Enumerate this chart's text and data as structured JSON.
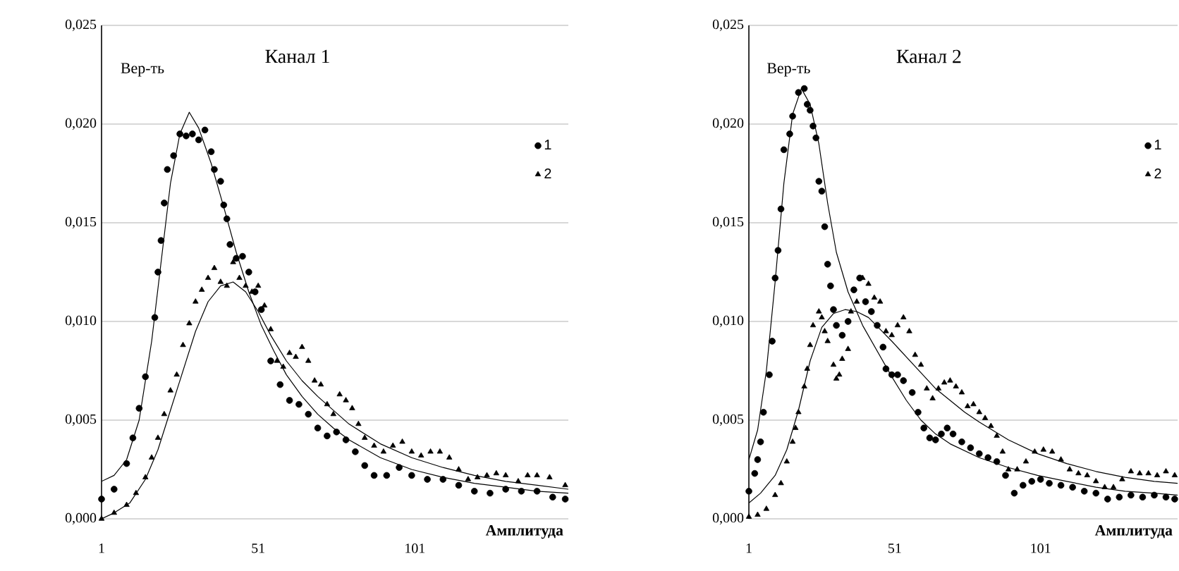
{
  "chart_data": [
    {
      "type": "scatter",
      "title": "Канал 1",
      "xlabel": "Амплитуда",
      "ylabel": "Вер-ть",
      "xlim": [
        1,
        150
      ],
      "xticks": [
        1,
        51,
        101
      ],
      "ylim": [
        0,
        0.025
      ],
      "yticks": [
        {
          "value": 0,
          "label": "0,000"
        },
        {
          "value": 0.005,
          "label": "0,005"
        },
        {
          "value": 0.01,
          "label": "0,010"
        },
        {
          "value": 0.015,
          "label": "0,015"
        },
        {
          "value": 0.02,
          "label": "0,020"
        },
        {
          "value": 0.025,
          "label": "0,025"
        }
      ],
      "grid": "y",
      "legend": "right",
      "series": [
        {
          "name": "1",
          "marker": "circle",
          "color": "#000000",
          "x": [
            1,
            5,
            9,
            11,
            13,
            15,
            18,
            19,
            20,
            21,
            22,
            24,
            26,
            28,
            30,
            32,
            34,
            36,
            37,
            39,
            40,
            41,
            42,
            44,
            46,
            48,
            50,
            52,
            55,
            58,
            61,
            64,
            67,
            70,
            73,
            76,
            79,
            82,
            85,
            88,
            92,
            96,
            100,
            105,
            110,
            115,
            120,
            125,
            130,
            135,
            140,
            145,
            149
          ],
          "values": [
            0.001,
            0.0015,
            0.0028,
            0.0041,
            0.0056,
            0.0072,
            0.0102,
            0.0125,
            0.0141,
            0.016,
            0.0177,
            0.0184,
            0.0195,
            0.0194,
            0.0195,
            0.0192,
            0.0197,
            0.0186,
            0.0177,
            0.0171,
            0.0159,
            0.0152,
            0.0139,
            0.0132,
            0.0133,
            0.0125,
            0.0115,
            0.0106,
            0.008,
            0.0068,
            0.006,
            0.0058,
            0.0053,
            0.0046,
            0.0042,
            0.0044,
            0.004,
            0.0034,
            0.0027,
            0.0022,
            0.0022,
            0.0026,
            0.0022,
            0.002,
            0.002,
            0.0017,
            0.0014,
            0.0013,
            0.0015,
            0.0014,
            0.0014,
            0.0011,
            0.001
          ]
        },
        {
          "name": "2",
          "marker": "triangle",
          "color": "#000000",
          "x": [
            1,
            5,
            9,
            12,
            15,
            17,
            19,
            21,
            23,
            25,
            27,
            29,
            31,
            33,
            35,
            37,
            39,
            41,
            43,
            45,
            47,
            49,
            51,
            53,
            55,
            57,
            59,
            61,
            63,
            65,
            67,
            69,
            71,
            73,
            75,
            77,
            79,
            81,
            83,
            85,
            88,
            91,
            94,
            97,
            100,
            103,
            106,
            109,
            112,
            115,
            118,
            121,
            124,
            127,
            130,
            134,
            137,
            140,
            144,
            149
          ],
          "values": [
            0.0,
            0.0003,
            0.0007,
            0.0013,
            0.0021,
            0.0031,
            0.0041,
            0.0053,
            0.0065,
            0.0073,
            0.0088,
            0.0099,
            0.011,
            0.0116,
            0.0122,
            0.0127,
            0.012,
            0.0118,
            0.013,
            0.0122,
            0.0118,
            0.0115,
            0.0118,
            0.0108,
            0.0096,
            0.008,
            0.0077,
            0.0084,
            0.0082,
            0.0087,
            0.008,
            0.007,
            0.0068,
            0.0058,
            0.0053,
            0.0063,
            0.006,
            0.0056,
            0.0048,
            0.0041,
            0.0037,
            0.0034,
            0.0037,
            0.0039,
            0.0034,
            0.0032,
            0.0034,
            0.0034,
            0.0031,
            0.0025,
            0.002,
            0.0021,
            0.0022,
            0.0023,
            0.0022,
            0.0019,
            0.0022,
            0.0022,
            0.0021,
            0.0017
          ]
        },
        {
          "type": "line",
          "marker": "none",
          "color": "#000000",
          "x": [
            1,
            5,
            9,
            13,
            17,
            20,
            23,
            26,
            29,
            32,
            36,
            40,
            44,
            48,
            52,
            56,
            60,
            65,
            70,
            75,
            80,
            90,
            100,
            110,
            120,
            130,
            140,
            150
          ],
          "values": [
            0.0019,
            0.0022,
            0.003,
            0.005,
            0.009,
            0.013,
            0.017,
            0.0195,
            0.0206,
            0.0198,
            0.018,
            0.0158,
            0.0135,
            0.0115,
            0.0098,
            0.0085,
            0.0073,
            0.0062,
            0.0053,
            0.0046,
            0.004,
            0.0031,
            0.0025,
            0.0021,
            0.0018,
            0.0016,
            0.0014,
            0.0013
          ]
        },
        {
          "type": "line",
          "marker": "none",
          "color": "#000000",
          "x": [
            1,
            5,
            10,
            15,
            19,
            23,
            27,
            31,
            35,
            39,
            43,
            47,
            51,
            55,
            60,
            65,
            70,
            75,
            80,
            90,
            100,
            110,
            120,
            130,
            140,
            150
          ],
          "values": [
            0.0,
            0.0003,
            0.0008,
            0.002,
            0.0035,
            0.0055,
            0.0075,
            0.0095,
            0.011,
            0.0118,
            0.012,
            0.0115,
            0.0105,
            0.0093,
            0.008,
            0.007,
            0.0062,
            0.0055,
            0.0048,
            0.0038,
            0.0031,
            0.0026,
            0.0022,
            0.0019,
            0.0017,
            0.0015
          ]
        }
      ]
    },
    {
      "type": "scatter",
      "title": "Канал 2",
      "xlabel": "Амплитуда",
      "ylabel": "Вер-ть",
      "xlim": [
        1,
        148
      ],
      "xticks": [
        1,
        51,
        101
      ],
      "ylim": [
        0,
        0.025
      ],
      "yticks": [
        {
          "value": 0,
          "label": "0,000"
        },
        {
          "value": 0.005,
          "label": "0,005"
        },
        {
          "value": 0.01,
          "label": "0,010"
        },
        {
          "value": 0.015,
          "label": "0,015"
        },
        {
          "value": 0.02,
          "label": "0,020"
        },
        {
          "value": 0.025,
          "label": "0,025"
        }
      ],
      "grid": "y",
      "legend": "right",
      "series": [
        {
          "name": "1",
          "marker": "circle",
          "color": "#000000",
          "x": [
            1,
            3,
            4,
            5,
            6,
            8,
            9,
            10,
            11,
            12,
            13,
            15,
            16,
            18,
            20,
            21,
            22,
            23,
            24,
            25,
            26,
            27,
            28,
            29,
            30,
            31,
            33,
            35,
            37,
            39,
            41,
            43,
            45,
            47,
            48,
            50,
            52,
            54,
            57,
            59,
            61,
            63,
            65,
            67,
            69,
            71,
            74,
            77,
            80,
            83,
            86,
            89,
            92,
            95,
            98,
            101,
            104,
            108,
            112,
            116,
            120,
            124,
            128,
            132,
            136,
            140,
            144,
            147
          ],
          "values": [
            0.0014,
            0.0023,
            0.003,
            0.0039,
            0.0054,
            0.0073,
            0.009,
            0.0122,
            0.0136,
            0.0157,
            0.0187,
            0.0195,
            0.0204,
            0.0216,
            0.0218,
            0.021,
            0.0207,
            0.0199,
            0.0193,
            0.0171,
            0.0166,
            0.0148,
            0.0129,
            0.0118,
            0.0106,
            0.0098,
            0.0093,
            0.01,
            0.0116,
            0.0122,
            0.011,
            0.0105,
            0.0098,
            0.0087,
            0.0076,
            0.0073,
            0.0073,
            0.007,
            0.0064,
            0.0054,
            0.0046,
            0.0041,
            0.004,
            0.0043,
            0.0046,
            0.0043,
            0.0039,
            0.0036,
            0.0033,
            0.0031,
            0.0029,
            0.0022,
            0.0013,
            0.0017,
            0.0019,
            0.002,
            0.0018,
            0.0017,
            0.0016,
            0.0014,
            0.0013,
            0.001,
            0.0011,
            0.0012,
            0.0011,
            0.0012,
            0.0011,
            0.001
          ]
        },
        {
          "name": "2",
          "marker": "triangle",
          "color": "#000000",
          "x": [
            1,
            4,
            7,
            10,
            12,
            14,
            16,
            17,
            18,
            20,
            21,
            22,
            23,
            25,
            26,
            27,
            28,
            30,
            31,
            32,
            33,
            35,
            36,
            38,
            40,
            42,
            44,
            46,
            48,
            50,
            52,
            54,
            56,
            58,
            60,
            62,
            64,
            66,
            68,
            70,
            72,
            74,
            76,
            78,
            80,
            82,
            84,
            86,
            88,
            90,
            93,
            96,
            99,
            102,
            105,
            108,
            111,
            114,
            117,
            120,
            123,
            126,
            129,
            132,
            135,
            138,
            141,
            144,
            147
          ],
          "values": [
            0.0001,
            0.0002,
            0.0005,
            0.0012,
            0.0018,
            0.0029,
            0.0039,
            0.0046,
            0.0054,
            0.0067,
            0.0076,
            0.0088,
            0.0098,
            0.0105,
            0.0102,
            0.0095,
            0.009,
            0.0078,
            0.0071,
            0.0073,
            0.0081,
            0.0086,
            0.0105,
            0.011,
            0.0122,
            0.0119,
            0.0112,
            0.011,
            0.0095,
            0.0093,
            0.0098,
            0.0102,
            0.0095,
            0.0083,
            0.0078,
            0.0066,
            0.0061,
            0.0066,
            0.0069,
            0.007,
            0.0067,
            0.0064,
            0.0057,
            0.0058,
            0.0054,
            0.0051,
            0.0047,
            0.0042,
            0.0034,
            0.0025,
            0.0025,
            0.0029,
            0.0034,
            0.0035,
            0.0034,
            0.003,
            0.0025,
            0.0023,
            0.0022,
            0.0019,
            0.0016,
            0.0016,
            0.002,
            0.0024,
            0.0023,
            0.0023,
            0.0022,
            0.0024,
            0.0022
          ]
        },
        {
          "type": "line",
          "marker": "none",
          "color": "#000000",
          "x": [
            1,
            4,
            7,
            10,
            13,
            16,
            19,
            22,
            25,
            28,
            31,
            35,
            40,
            45,
            50,
            55,
            60,
            65,
            70,
            80,
            90,
            100,
            110,
            120,
            130,
            140,
            148
          ],
          "values": [
            0.003,
            0.0045,
            0.0075,
            0.012,
            0.017,
            0.0205,
            0.0218,
            0.021,
            0.019,
            0.016,
            0.0135,
            0.0115,
            0.0098,
            0.0085,
            0.0072,
            0.006,
            0.005,
            0.0043,
            0.0038,
            0.0031,
            0.0026,
            0.0022,
            0.0019,
            0.0016,
            0.0014,
            0.0013,
            0.0012
          ]
        },
        {
          "type": "line",
          "marker": "none",
          "color": "#000000",
          "x": [
            1,
            5,
            10,
            14,
            18,
            22,
            26,
            30,
            34,
            38,
            42,
            46,
            50,
            55,
            60,
            65,
            70,
            75,
            80,
            90,
            100,
            110,
            120,
            130,
            140,
            148
          ],
          "values": [
            0.0008,
            0.0013,
            0.0022,
            0.0035,
            0.0055,
            0.008,
            0.0097,
            0.0104,
            0.0106,
            0.0105,
            0.0102,
            0.0096,
            0.009,
            0.0082,
            0.0074,
            0.0066,
            0.006,
            0.0054,
            0.0049,
            0.004,
            0.0033,
            0.0028,
            0.0024,
            0.0021,
            0.0019,
            0.0018
          ]
        }
      ]
    }
  ]
}
